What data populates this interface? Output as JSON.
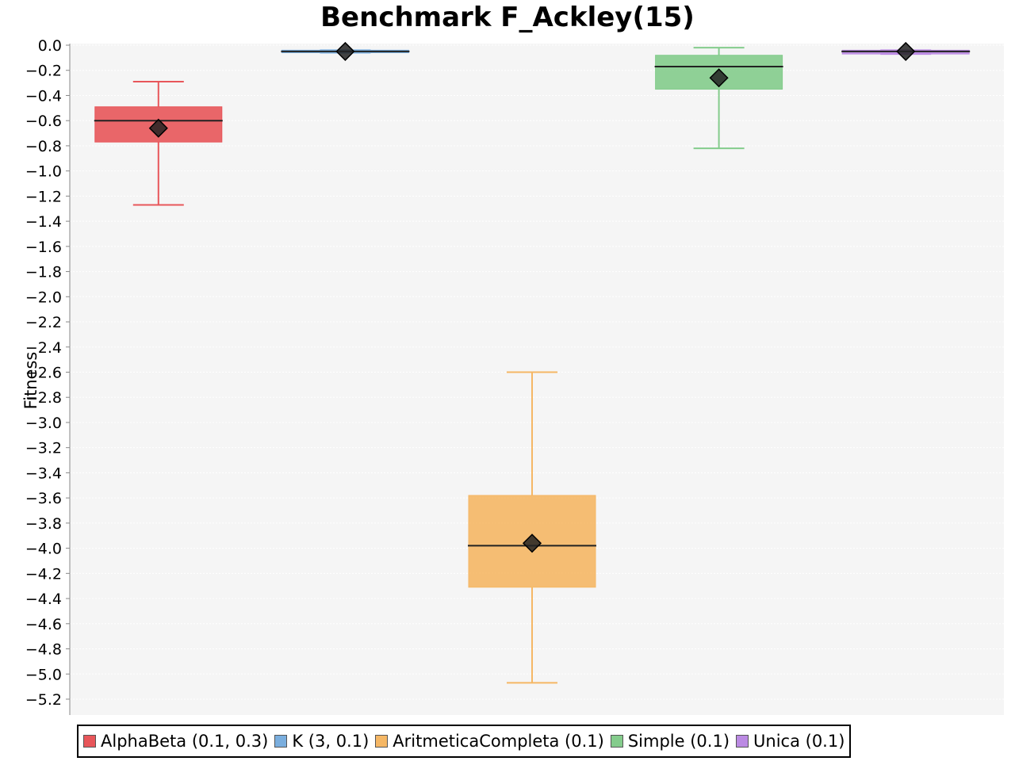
{
  "chart_data": {
    "type": "box",
    "title": "Benchmark F_Ackley(15)",
    "xlabel": "",
    "ylabel": "Fitness",
    "ylim": [
      -5.3,
      0.0
    ],
    "y_ticks": [
      "0.0",
      "−0.2",
      "−0.4",
      "−0.6",
      "−0.8",
      "−1.0",
      "−1.2",
      "−1.4",
      "−1.6",
      "−1.8",
      "−2.0",
      "−2.2",
      "−2.4",
      "−2.6",
      "−2.8",
      "−3.0",
      "−3.2",
      "−3.4",
      "−3.6",
      "−3.8",
      "−4.0",
      "−4.2",
      "−4.4",
      "−4.6",
      "−4.8",
      "−5.0",
      "−5.2"
    ],
    "grid": true,
    "legend_position": "bottom",
    "series": [
      {
        "name": "AlphaBeta (0.1, 0.3)",
        "color": "#e8565a",
        "whisker_high": -0.29,
        "q3": -0.49,
        "median": -0.6,
        "mean": -0.66,
        "q1": -0.77,
        "whisker_low": -1.27
      },
      {
        "name": "K (3, 0.1)",
        "color": "#7aaede",
        "whisker_high": -0.04,
        "q3": -0.04,
        "median": -0.05,
        "mean": -0.05,
        "q1": -0.06,
        "whisker_low": -0.06
      },
      {
        "name": "AritmeticaCompleta (0.1)",
        "color": "#f5b765",
        "whisker_high": -2.6,
        "q3": -3.58,
        "median": -3.98,
        "mean": -3.96,
        "q1": -4.31,
        "whisker_low": -5.07
      },
      {
        "name": "Simple (0.1)",
        "color": "#84cc8c",
        "whisker_high": -0.02,
        "q3": -0.08,
        "median": -0.17,
        "mean": -0.26,
        "q1": -0.35,
        "whisker_low": -0.82
      },
      {
        "name": "Unica (0.1)",
        "color": "#bb8ae3",
        "whisker_high": -0.04,
        "q3": -0.04,
        "median": -0.05,
        "mean": -0.05,
        "q1": -0.07,
        "whisker_low": -0.07
      }
    ]
  }
}
